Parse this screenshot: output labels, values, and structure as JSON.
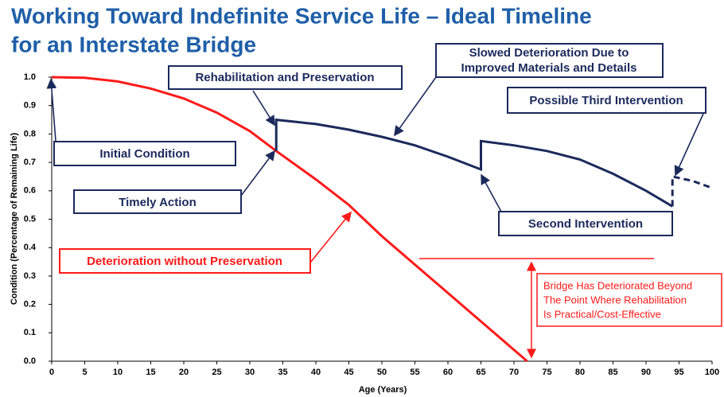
{
  "chart_data": {
    "type": "line",
    "title": [
      "Working Toward Indefinite Service Life – Ideal Timeline",
      "for an Interstate Bridge"
    ],
    "xlabel": "Age (Years)",
    "ylabel": "Condition (Percentage of Remaining Life)",
    "xlim": [
      0,
      100
    ],
    "ylim": [
      0,
      1
    ],
    "xticks": [
      0,
      5,
      10,
      15,
      20,
      25,
      30,
      35,
      40,
      45,
      50,
      55,
      60,
      65,
      70,
      75,
      80,
      85,
      90,
      95,
      100
    ],
    "yticks": [
      {
        "value": 0,
        "label": "0.0"
      },
      0.1,
      0.2,
      0.3,
      0.4,
      0.5,
      0.6,
      0.7,
      0.8,
      0.9,
      {
        "value": 1,
        "label": "1.0"
      }
    ],
    "series": [
      {
        "color": "#ff1a1a",
        "x": [
          0,
          5,
          10,
          15,
          20,
          25,
          30,
          34,
          40,
          45,
          50,
          55,
          60,
          65,
          70,
          72
        ],
        "values": [
          1,
          0.998,
          0.985,
          0.96,
          0.925,
          0.875,
          0.81,
          0.74,
          0.64,
          0.55,
          0.44,
          0.34,
          0.24,
          0.14,
          0.04,
          0
        ]
      },
      {
        "color": "#1b2a5c",
        "x": [
          34,
          34,
          40,
          45,
          50,
          55,
          60,
          65,
          65,
          70,
          75,
          80,
          85,
          90,
          94
        ],
        "values": [
          0.74,
          0.85,
          0.835,
          0.815,
          0.79,
          0.76,
          0.72,
          0.675,
          0.775,
          0.76,
          0.74,
          0.71,
          0.66,
          0.6,
          0.545
        ]
      },
      {
        "color": "#1b2a5c",
        "dashed": true,
        "x": [
          94,
          94,
          97,
          100
        ],
        "values": [
          0.545,
          0.65,
          0.635,
          0.61
        ]
      }
    ],
    "annotations": {
      "rehab": "Rehabilitation and Preservation",
      "slowed": [
        "Slowed Deterioration Due to",
        "Improved Materials and Details"
      ],
      "third": "Possible Third Intervention",
      "initial": "Initial Condition",
      "timely": "Timely Action",
      "second": "Second Intervention",
      "without": "Deterioration without Preservation",
      "beyond": [
        "Bridge Has Deteriorated Beyond",
        "The Point Where Rehabilitation",
        "Is Practical/Cost-Effective"
      ]
    }
  }
}
